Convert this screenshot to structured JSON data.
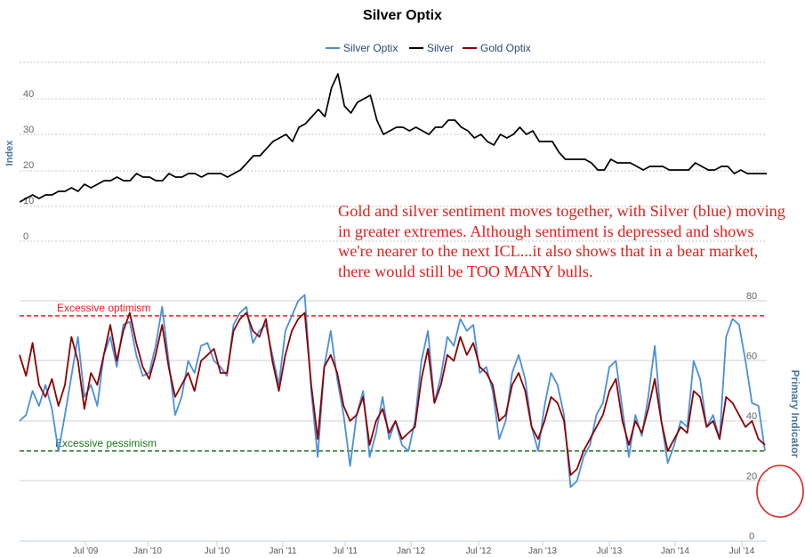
{
  "chart_data": {
    "type": "line",
    "title": "Silver Optix",
    "annotation": "Gold and silver sentiment moves together, with Silver (blue) moving in greater extremes.  Although sentiment is depressed and shows we're nearer to the next ICL...it also shows that in a bear market, there would still be TOO MANY bulls.",
    "legend": [
      "Silver Optix",
      "Silver",
      "Gold Optix"
    ],
    "legend_position": "top-center",
    "colors": {
      "silver_optix": "#4a90d9",
      "silver": "#000000",
      "gold_optix": "#8b0000",
      "optimism_line": "#e8201c",
      "pessimism_line": "#1a7a1a",
      "highlight_circle": "#e02020"
    },
    "x_tick_labels": [
      "Jul '09",
      "Jan '10",
      "Jul '10",
      "Jan '11",
      "Jul '11",
      "Jan '12",
      "Jul '12",
      "Jan '13",
      "Jul '13",
      "Jan '14",
      "Jul '14"
    ],
    "x_range": [
      "2009-01",
      "2014-10"
    ],
    "left_axis": {
      "label": "Index",
      "ticks": [
        "0",
        "10",
        "20",
        "30",
        "40"
      ],
      "range": [
        0,
        50
      ]
    },
    "right_axis": {
      "label": "Primary Indicator",
      "ticks": [
        "0",
        "20",
        "40",
        "60",
        "80"
      ],
      "range": [
        0,
        80
      ]
    },
    "reference_lines": [
      {
        "label": "Excessive optimism",
        "value": 75
      },
      {
        "label": "Excessive pessimism",
        "value": 30
      }
    ],
    "series": [
      {
        "name": "Silver",
        "axis": "left",
        "values": [
          11,
          12,
          13,
          12,
          13,
          13,
          14,
          14,
          15,
          14,
          16,
          15,
          16,
          17,
          17,
          18,
          17,
          17,
          19,
          18,
          18,
          17,
          17,
          19,
          18,
          18,
          19,
          19,
          18,
          19,
          19,
          19,
          18,
          19,
          20,
          22,
          24,
          24,
          26,
          28,
          29,
          30,
          28,
          32,
          33,
          35,
          37,
          35,
          43,
          47,
          38,
          36,
          39,
          40,
          41,
          34,
          30,
          31,
          32,
          32,
          31,
          32,
          31,
          30,
          32,
          32,
          34,
          34,
          32,
          31,
          29,
          30,
          28,
          27,
          30,
          29,
          30,
          32,
          30,
          31,
          28,
          28,
          28,
          25,
          23,
          23,
          23,
          23,
          22,
          20,
          20,
          23,
          22,
          22,
          22,
          21,
          20,
          21,
          21,
          21,
          20,
          20,
          20,
          20,
          22,
          21,
          20,
          20,
          21,
          21,
          19,
          20,
          19,
          19,
          19,
          19
        ]
      },
      {
        "name": "Silver Optix",
        "axis": "right",
        "values": [
          40,
          42,
          50,
          45,
          52,
          44,
          30,
          42,
          55,
          68,
          48,
          52,
          45,
          62,
          68,
          58,
          72,
          73,
          62,
          55,
          56,
          65,
          78,
          60,
          42,
          48,
          60,
          56,
          65,
          66,
          60,
          58,
          55,
          72,
          76,
          78,
          66,
          70,
          72,
          62,
          52,
          70,
          75,
          80,
          82,
          50,
          28,
          58,
          70,
          54,
          42,
          25,
          42,
          50,
          28,
          36,
          48,
          34,
          40,
          32,
          30,
          40,
          60,
          70,
          46,
          55,
          68,
          65,
          74,
          70,
          72,
          56,
          58,
          50,
          34,
          40,
          56,
          62,
          54,
          38,
          30,
          45,
          56,
          52,
          42,
          18,
          20,
          28,
          32,
          42,
          46,
          58,
          60,
          44,
          28,
          42,
          35,
          48,
          65,
          40,
          26,
          32,
          40,
          38,
          60,
          54,
          38,
          42,
          34,
          68,
          74,
          72,
          60,
          46,
          45,
          30
        ]
      },
      {
        "name": "Gold Optix",
        "axis": "right",
        "values": [
          62,
          55,
          66,
          52,
          48,
          54,
          45,
          52,
          68,
          60,
          44,
          56,
          52,
          62,
          72,
          60,
          70,
          76,
          66,
          58,
          54,
          62,
          72,
          58,
          48,
          52,
          56,
          50,
          60,
          62,
          64,
          56,
          56,
          70,
          74,
          76,
          70,
          68,
          74,
          60,
          50,
          62,
          70,
          74,
          76,
          52,
          34,
          58,
          62,
          56,
          45,
          40,
          42,
          48,
          32,
          40,
          44,
          36,
          40,
          34,
          36,
          38,
          54,
          64,
          46,
          52,
          62,
          60,
          68,
          62,
          66,
          58,
          56,
          52,
          40,
          42,
          52,
          56,
          50,
          38,
          34,
          40,
          48,
          46,
          40,
          22,
          24,
          30,
          34,
          38,
          42,
          50,
          54,
          40,
          32,
          40,
          36,
          44,
          54,
          40,
          30,
          34,
          38,
          36,
          50,
          48,
          38,
          40,
          34,
          48,
          46,
          42,
          38,
          40,
          34,
          32
        ]
      }
    ]
  }
}
